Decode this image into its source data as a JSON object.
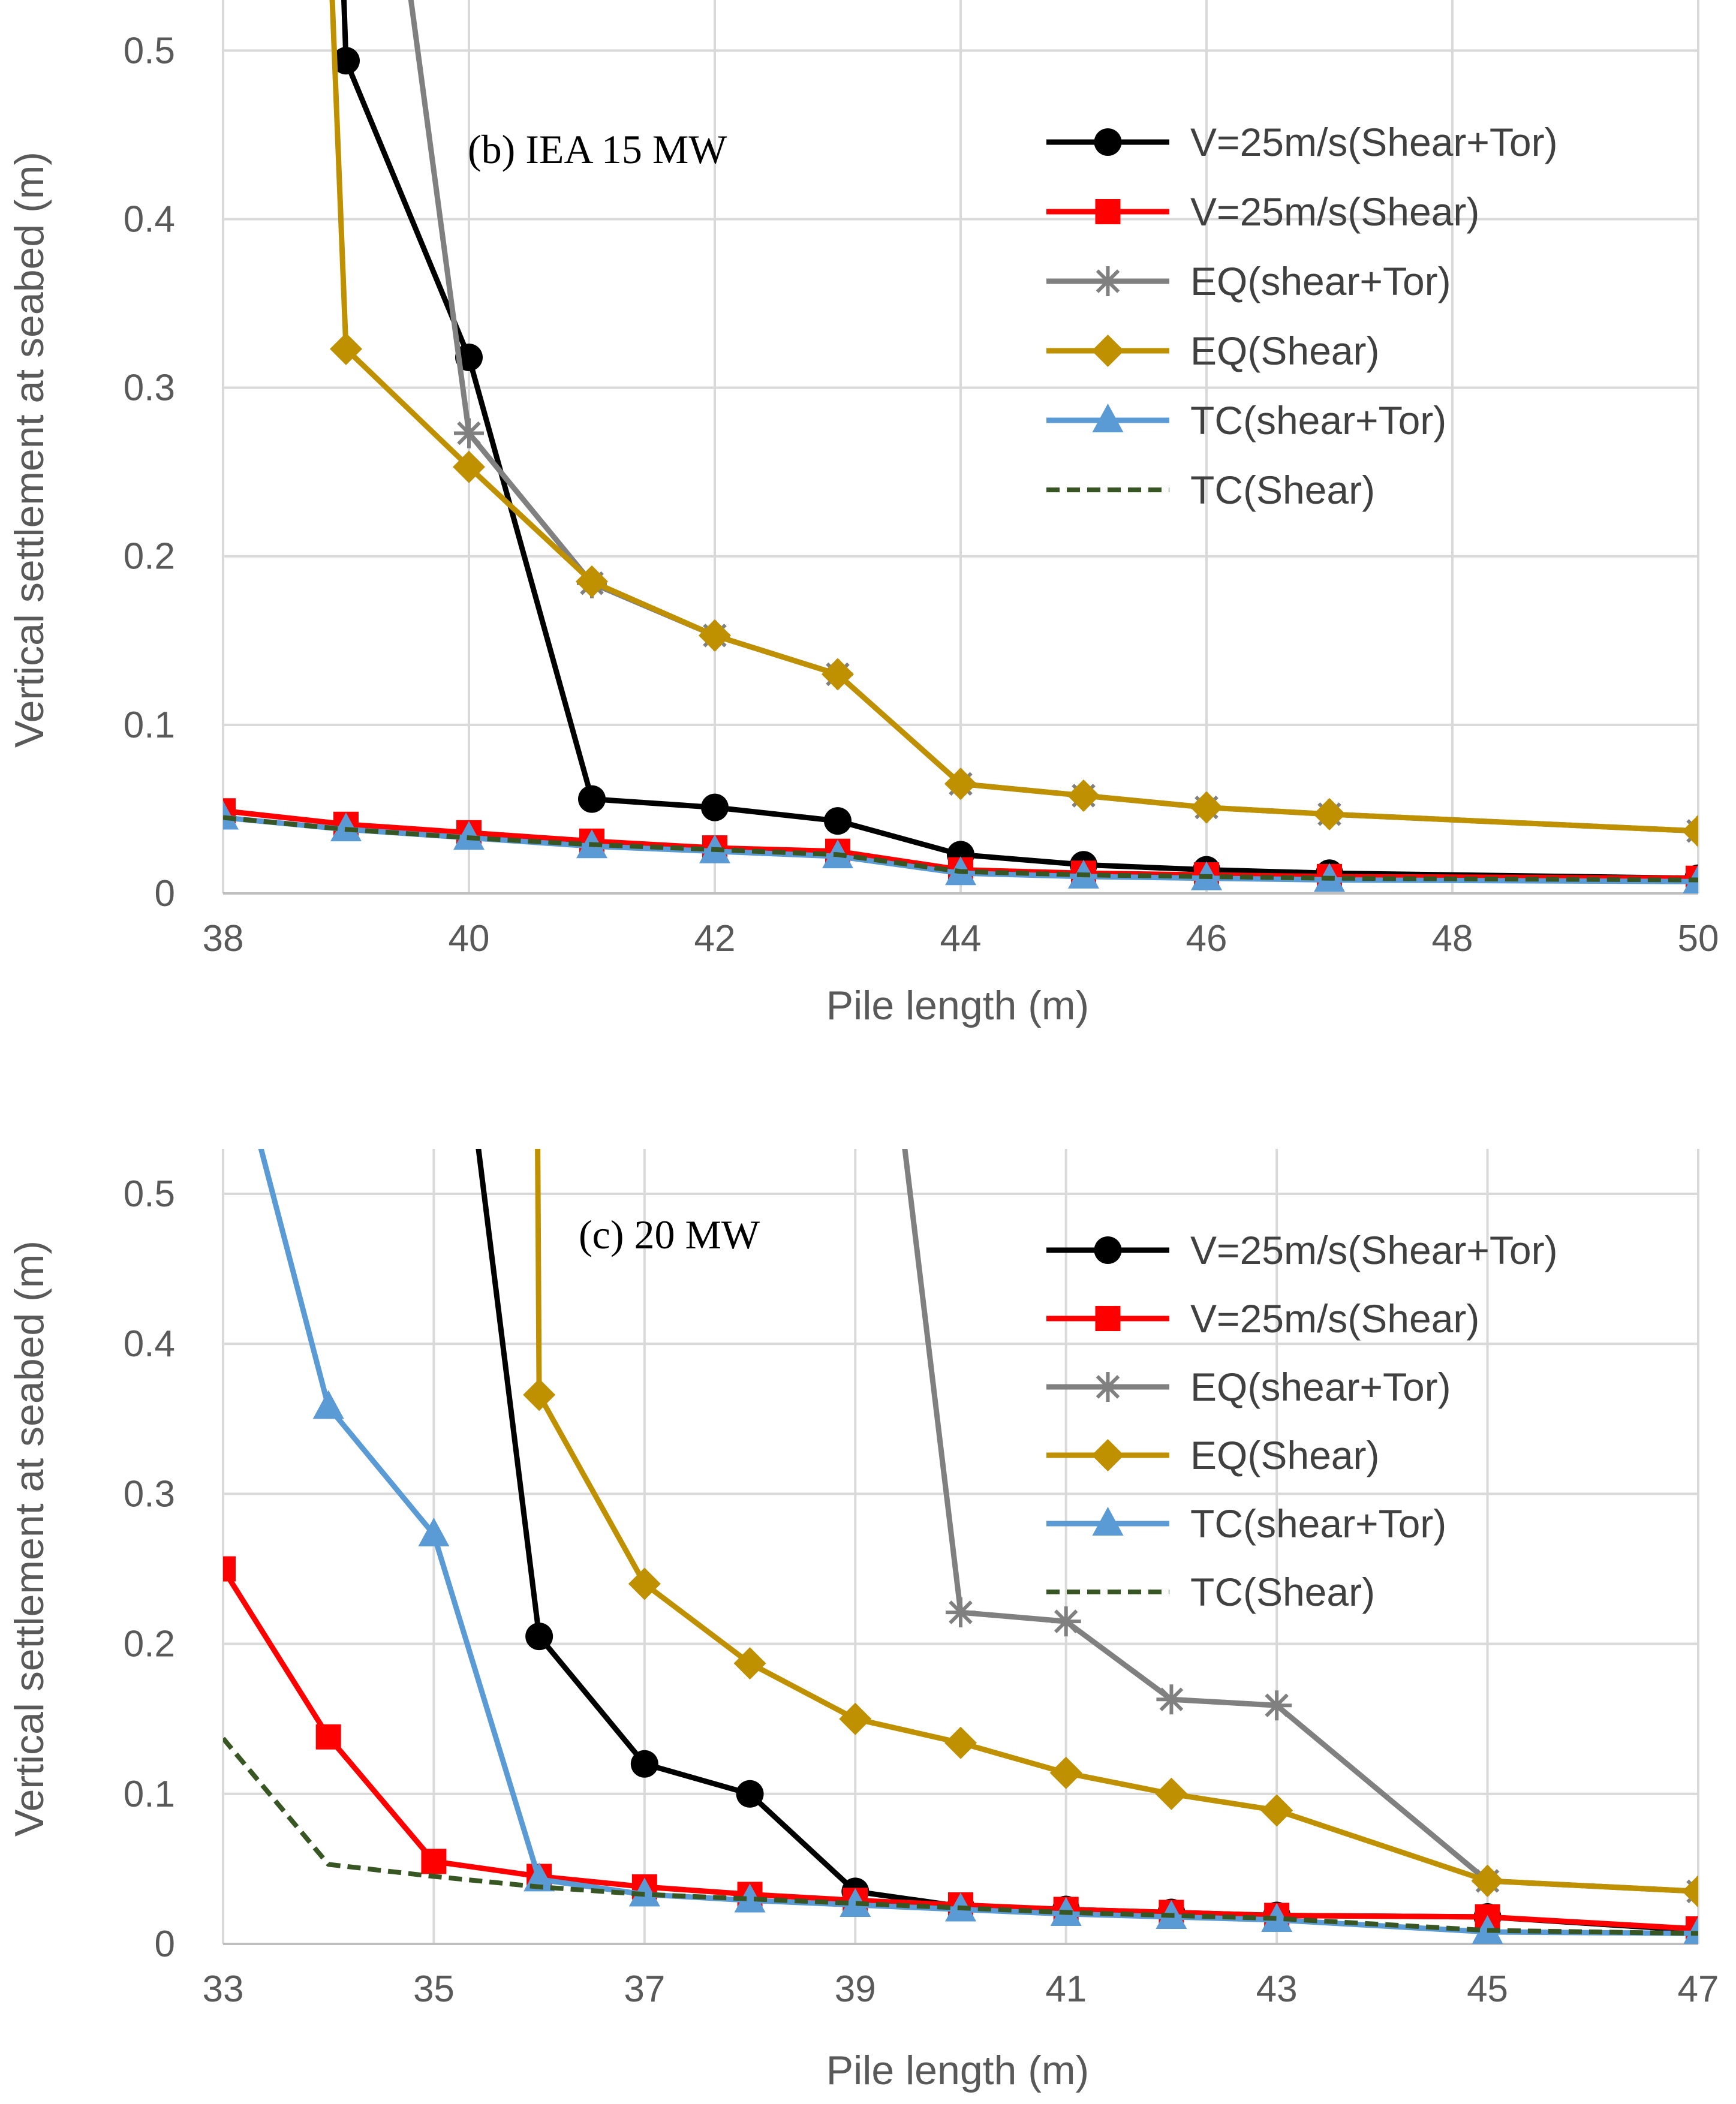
{
  "series_styles": {
    "V=25m/s(Shear+Tor)": {
      "color": "#000000",
      "marker": "circle",
      "dash": false
    },
    "V=25m/s(Shear)": {
      "color": "#ff0000",
      "marker": "square",
      "dash": false
    },
    "EQ(shear+Tor)": {
      "color": "#808080",
      "marker": "star",
      "dash": false
    },
    "EQ(Shear)": {
      "color": "#bf9000",
      "marker": "diamond",
      "dash": false
    },
    "TC(shear+Tor)": {
      "color": "#5b9bd5",
      "marker": "triangle",
      "dash": false
    },
    "TC(Shear)": {
      "color": "#375623",
      "marker": "none",
      "dash": true
    }
  },
  "chart_data": [
    {
      "type": "line",
      "title": "(b) IEA 15 MW",
      "xlabel": "Pile length (m)",
      "ylabel": "Vertical settlement at seabed (m)",
      "xlim": [
        38,
        50
      ],
      "ylim": [
        0,
        0.53
      ],
      "xticks": [
        38,
        40,
        42,
        44,
        46,
        48,
        50
      ],
      "xtick_labels": [
        "38",
        "40",
        "42",
        "44",
        "46",
        "48",
        "50"
      ],
      "yticks": [
        0,
        0.1,
        0.2,
        0.3,
        0.4,
        0.5
      ],
      "ytick_labels": [
        "0",
        "0.1",
        "0.2",
        "0.3",
        "0.4",
        "0.5"
      ],
      "grid": true,
      "legend_position": "top-right",
      "series": [
        {
          "name": "V=25m/s(Shear+Tor)",
          "x": [
            39,
            40,
            41,
            42,
            43,
            44,
            45,
            46,
            47,
            50
          ],
          "y": [
            0.494,
            0.318,
            0.056,
            0.051,
            0.043,
            0.023,
            0.017,
            0.014,
            0.012,
            0.009
          ],
          "x_lead": 38.95,
          "y_lead": 0.6
        },
        {
          "name": "V=25m/s(Shear)",
          "x": [
            38,
            39,
            40,
            41,
            42,
            43,
            44,
            45,
            46,
            47,
            50
          ],
          "y": [
            0.049,
            0.041,
            0.036,
            0.031,
            0.027,
            0.025,
            0.014,
            0.012,
            0.011,
            0.01,
            0.009
          ]
        },
        {
          "name": "EQ(shear+Tor)",
          "x": [
            40,
            41,
            42,
            43,
            44,
            45,
            46,
            47,
            50
          ],
          "y": [
            0.273,
            0.184,
            0.153,
            0.13,
            0.065,
            0.058,
            0.051,
            0.047,
            0.037
          ],
          "x_lead": 39.4,
          "y_lead": 0.6
        },
        {
          "name": "EQ(Shear)",
          "x": [
            39,
            40,
            41,
            42,
            43,
            44,
            45,
            46,
            47,
            50
          ],
          "y": [
            0.323,
            0.253,
            0.185,
            0.153,
            0.13,
            0.065,
            0.058,
            0.051,
            0.047,
            0.037
          ],
          "x_lead": 38.85,
          "y_lead": 0.6
        },
        {
          "name": "TC(shear+Tor)",
          "x": [
            38,
            39,
            40,
            41,
            42,
            43,
            44,
            45,
            46,
            47,
            50
          ],
          "y": [
            0.045,
            0.038,
            0.033,
            0.028,
            0.025,
            0.022,
            0.012,
            0.01,
            0.009,
            0.008,
            0.007
          ]
        },
        {
          "name": "TC(Shear)",
          "x": [
            38,
            39,
            40,
            41,
            42,
            43,
            44,
            45,
            46,
            47,
            50
          ],
          "y": [
            0.045,
            0.038,
            0.033,
            0.029,
            0.026,
            0.023,
            0.013,
            0.011,
            0.01,
            0.009,
            0.008
          ]
        }
      ]
    },
    {
      "type": "line",
      "title": "(c) 20 MW",
      "xlabel": "Pile length (m)",
      "ylabel": "Vertical settlement at seabed (m)",
      "xlim": [
        33,
        47
      ],
      "ylim": [
        0,
        0.53
      ],
      "xticks": [
        33,
        35,
        37,
        39,
        41,
        43,
        45,
        47
      ],
      "xtick_labels": [
        "33",
        "35",
        "37",
        "39",
        "41",
        "43",
        "45",
        "47"
      ],
      "yticks": [
        0,
        0.1,
        0.2,
        0.3,
        0.4,
        0.5
      ],
      "ytick_labels": [
        "0",
        "0.1",
        "0.2",
        "0.3",
        "0.4",
        "0.5"
      ],
      "grid": true,
      "legend_position": "top-right",
      "series": [
        {
          "name": "V=25m/s(Shear+Tor)",
          "x": [
            36,
            37,
            38,
            39,
            40,
            41,
            42,
            43,
            45,
            47
          ],
          "y": [
            0.205,
            0.12,
            0.1,
            0.035,
            0.025,
            0.023,
            0.021,
            0.019,
            0.018,
            0.009
          ],
          "x_lead": 35.3,
          "y_lead": 0.6
        },
        {
          "name": "V=25m/s(Shear)",
          "x": [
            33,
            34,
            35,
            36,
            37,
            38,
            39,
            40,
            41,
            42,
            43,
            45,
            47
          ],
          "y": [
            0.25,
            0.138,
            0.055,
            0.045,
            0.038,
            0.033,
            0.029,
            0.026,
            0.023,
            0.021,
            0.019,
            0.018,
            0.01
          ]
        },
        {
          "name": "EQ(shear+Tor)",
          "x": [
            40,
            41,
            42,
            43,
            45,
            47
          ],
          "y": [
            0.221,
            0.215,
            0.163,
            0.159,
            0.042,
            0.035
          ],
          "x_lead": 39.35,
          "y_lead": 0.6
        },
        {
          "name": "EQ(Shear)",
          "x": [
            36,
            37,
            38,
            39,
            40,
            41,
            42,
            43,
            45,
            47
          ],
          "y": [
            0.366,
            0.24,
            0.187,
            0.15,
            0.134,
            0.114,
            0.1,
            0.089,
            0.042,
            0.035
          ],
          "x_lead": 35.98,
          "y_lead": 0.6
        },
        {
          "name": "TC(shear+Tor)",
          "x": [
            34,
            35,
            36,
            37,
            38,
            39,
            40,
            41,
            42,
            43,
            45,
            47
          ],
          "y": [
            0.358,
            0.273,
            0.043,
            0.033,
            0.029,
            0.026,
            0.023,
            0.02,
            0.018,
            0.016,
            0.008,
            0.007
          ],
          "x_lead": 33.1,
          "y_lead": 0.6
        },
        {
          "name": "TC(Shear)",
          "x": [
            33,
            34,
            35,
            36,
            37,
            38,
            39,
            40,
            41,
            42,
            43,
            45,
            47
          ],
          "y": [
            0.137,
            0.053,
            0.045,
            0.038,
            0.033,
            0.03,
            0.027,
            0.024,
            0.021,
            0.019,
            0.017,
            0.009,
            0.007
          ]
        }
      ]
    }
  ]
}
